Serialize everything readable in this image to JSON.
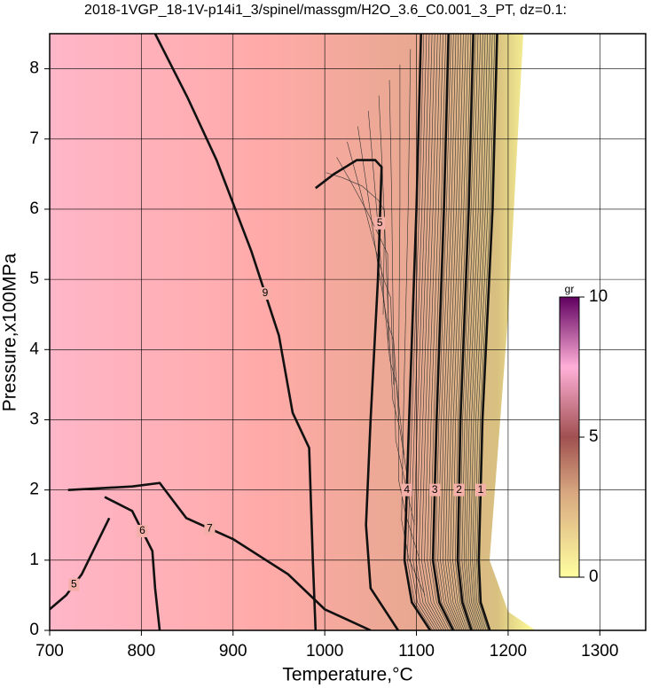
{
  "chart_data": {
    "type": "contour",
    "title": "2018-1VGP_18-1V-p14i1_3/spinel/massgm/H2O_3.6_C0.001_3_PT, dz=0.1:",
    "x_label": "Temperature,°C",
    "y_label": "Pressure,x100MPa",
    "xlim": [
      700,
      1350
    ],
    "ylim": [
      0,
      8.5
    ],
    "xticks": [
      700,
      800,
      900,
      1000,
      1100,
      1200,
      1300
    ],
    "yticks": [
      0,
      1,
      2,
      3,
      4,
      5,
      6,
      7,
      8
    ],
    "grid": true,
    "contours": [
      {
        "level": 9,
        "x": [
          815,
          850,
          882,
          920,
          950,
          965,
          983,
          987,
          990
        ],
        "y": [
          8.5,
          7.6,
          6.7,
          5.4,
          4.2,
          3.1,
          2.6,
          1.0,
          0
        ]
      },
      {
        "level": 5,
        "x": [
          990,
          1010,
          1035,
          1055,
          1062,
          1058,
          1050,
          1045,
          1050,
          1080
        ],
        "y": [
          6.3,
          6.5,
          6.7,
          6.7,
          6.6,
          5,
          3,
          1.5,
          0.6,
          0
        ]
      },
      {
        "level": 4,
        "x": [
          1105,
          1100,
          1092,
          1087,
          1095,
          1115
        ],
        "y": [
          8.5,
          6,
          3,
          1,
          0.4,
          0
        ]
      },
      {
        "level": 3,
        "x": [
          1135,
          1130,
          1122,
          1118,
          1125,
          1140
        ],
        "y": [
          8.5,
          6,
          3,
          1,
          0.4,
          0
        ]
      },
      {
        "level": 2,
        "x": [
          1162,
          1157,
          1148,
          1145,
          1150,
          1160
        ],
        "y": [
          8.5,
          6,
          3,
          1,
          0.4,
          0
        ]
      },
      {
        "level": 1,
        "x": [
          1188,
          1183,
          1172,
          1168,
          1170,
          1180
        ],
        "y": [
          8.5,
          6,
          3,
          1,
          0.4,
          0
        ]
      },
      {
        "level": 7,
        "x": [
          720,
          790,
          820,
          849,
          900,
          960,
          1000,
          1050
        ],
        "y": [
          2.0,
          2.05,
          2.1,
          1.6,
          1.3,
          0.8,
          0.3,
          0
        ]
      },
      {
        "level": 6,
        "x": [
          760,
          790,
          812,
          815,
          820
        ],
        "y": [
          1.9,
          1.7,
          1.13,
          0.6,
          0
        ]
      },
      {
        "level": 5,
        "x": [
          700,
          718,
          735,
          750,
          765
        ],
        "y": [
          0.3,
          0.5,
          0.8,
          1.2,
          1.6
        ]
      }
    ],
    "colorbar": {
      "label": "gr",
      "lim": [
        0,
        10
      ],
      "ticks": [
        0,
        5,
        10
      ]
    }
  }
}
